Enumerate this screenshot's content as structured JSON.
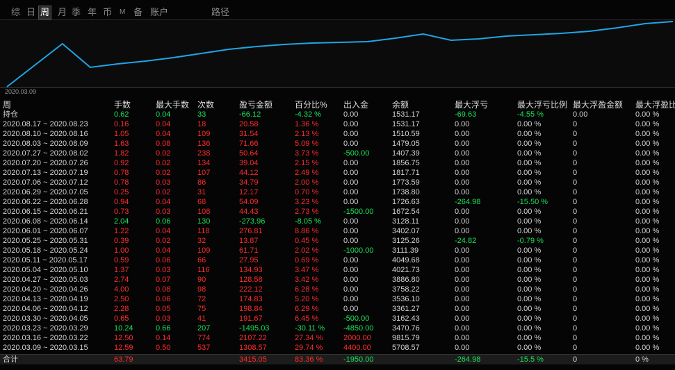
{
  "tabs": [
    "综",
    "日",
    "周",
    "月",
    "季",
    "年",
    "币",
    "M",
    "备",
    "账户",
    "路径"
  ],
  "selected_tab": "周",
  "chart_data": {
    "type": "line",
    "color": "#1ea6e6",
    "categories": [
      "2020.03.09",
      null,
      null,
      null,
      null,
      null,
      null,
      null,
      null,
      null,
      null,
      null,
      null,
      null,
      null,
      null,
      null,
      null,
      null,
      null,
      null,
      null,
      null,
      null,
      null
    ],
    "values": [
      0,
      31,
      62,
      28,
      33,
      37,
      42,
      48,
      54,
      58,
      61,
      63,
      64,
      65,
      70,
      76,
      67,
      69,
      73,
      75,
      77,
      80,
      85,
      91,
      94
    ]
  },
  "palette": {
    "w": "#d4d4d4",
    "r": "#ff2b2b",
    "g": "#19e35a"
  },
  "table": {
    "header": [
      "周",
      "手数",
      "最大手数",
      "次数",
      "盈亏金额",
      "百分比%",
      "出入金",
      "余额",
      "最大浮亏",
      "最大浮亏比例",
      "最大浮盈金额",
      "最大浮盈比"
    ],
    "rows": [
      {
        "cells": [
          "持仓",
          "0.62",
          "0.04",
          "33",
          "-66.12",
          "-4.32 %",
          "0.00",
          "1531.17",
          "-69.63",
          "-4.55 %",
          "0.00",
          "0.00 %"
        ],
        "colors": "wgggggwwggww"
      },
      {
        "cells": [
          "2020.08.17 ~ 2020.08.23",
          "0.16",
          "0.04",
          "18",
          "20.58",
          "1.36 %",
          "0.00",
          "1531.17",
          "0.00",
          "0.00 %",
          "0",
          "0.00 %"
        ],
        "colors": "wrrrrrwwwwww"
      },
      {
        "cells": [
          "2020.08.10 ~ 2020.08.16",
          "1.05",
          "0.04",
          "109",
          "31.54",
          "2.13 %",
          "0.00",
          "1510.59",
          "0.00",
          "0.00 %",
          "0",
          "0.00 %"
        ],
        "colors": "wrrrrrwwwwww"
      },
      {
        "cells": [
          "2020.08.03 ~ 2020.08.09",
          "1.63",
          "0.08",
          "136",
          "71.66",
          "5.09 %",
          "0.00",
          "1479.05",
          "0.00",
          "0.00 %",
          "0",
          "0.00 %"
        ],
        "colors": "wrrrrrwwwwww"
      },
      {
        "cells": [
          "2020.07.27 ~ 2020.08.02",
          "1.82",
          "0.02",
          "238",
          "50.64",
          "3.73 %",
          "-500.00",
          "1407.39",
          "0.00",
          "0.00 %",
          "0",
          "0.00 %"
        ],
        "colors": "wrrrrrgwwwww"
      },
      {
        "cells": [
          "2020.07.20 ~ 2020.07.26",
          "0.92",
          "0.02",
          "134",
          "39.04",
          "2.15 %",
          "0.00",
          "1856.75",
          "0.00",
          "0.00 %",
          "0",
          "0.00 %"
        ],
        "colors": "wrrrrrwwwwww"
      },
      {
        "cells": [
          "2020.07.13 ~ 2020.07.19",
          "0.78",
          "0.02",
          "107",
          "44.12",
          "2.49 %",
          "0.00",
          "1817.71",
          "0.00",
          "0.00 %",
          "0",
          "0.00 %"
        ],
        "colors": "wrrrrrwwwwww"
      },
      {
        "cells": [
          "2020.07.06 ~ 2020.07.12",
          "0.78",
          "0.03",
          "86",
          "34.79",
          "2.00 %",
          "0.00",
          "1773.59",
          "0.00",
          "0.00 %",
          "0",
          "0.00 %"
        ],
        "colors": "wrrrrrwwwwww"
      },
      {
        "cells": [
          "2020.06.29 ~ 2020.07.05",
          "0.25",
          "0.02",
          "31",
          "12.17",
          "0.70 %",
          "0.00",
          "1738.80",
          "0.00",
          "0.00 %",
          "0",
          "0.00 %"
        ],
        "colors": "wrrrrrwwwwww"
      },
      {
        "cells": [
          "2020.06.22 ~ 2020.06.28",
          "0.94",
          "0.04",
          "68",
          "54.09",
          "3.23 %",
          "0.00",
          "1726.63",
          "-264.98",
          "-15.50 %",
          "0",
          "0.00 %"
        ],
        "colors": "wrrrrrwwggww"
      },
      {
        "cells": [
          "2020.06.15 ~ 2020.06.21",
          "0.73",
          "0.03",
          "108",
          "44.43",
          "2.73 %",
          "-1500.00",
          "1672.54",
          "0.00",
          "0.00 %",
          "0",
          "0.00 %"
        ],
        "colors": "wrrrrrgwwwww"
      },
      {
        "cells": [
          "2020.06.08 ~ 2020.06.14",
          "2.04",
          "0.06",
          "130",
          "-273.96",
          "-8.05 %",
          "0.00",
          "3128.11",
          "0.00",
          "0.00 %",
          "0",
          "0.00 %"
        ],
        "colors": "wgggggwwwwww"
      },
      {
        "cells": [
          "2020.06.01 ~ 2020.06.07",
          "1.22",
          "0.04",
          "118",
          "276.81",
          "8.86 %",
          "0.00",
          "3402.07",
          "0.00",
          "0.00 %",
          "0",
          "0.00 %"
        ],
        "colors": "wrrrrrwwwwww"
      },
      {
        "cells": [
          "2020.05.25 ~ 2020.05.31",
          "0.39",
          "0.02",
          "32",
          "13.87",
          "0.45 %",
          "0.00",
          "3125.26",
          "-24.82",
          "-0.79 %",
          "0",
          "0.00 %"
        ],
        "colors": "wrrrrrwwggww"
      },
      {
        "cells": [
          "2020.05.18 ~ 2020.05.24",
          "1.00",
          "0.04",
          "109",
          "61.71",
          "2.02 %",
          "-1000.00",
          "3111.39",
          "0.00",
          "0.00 %",
          "0",
          "0.00 %"
        ],
        "colors": "wrrrrrgwwwww"
      },
      {
        "cells": [
          "2020.05.11 ~ 2020.05.17",
          "0.59",
          "0.06",
          "66",
          "27.95",
          "0.69 %",
          "0.00",
          "4049.68",
          "0.00",
          "0.00 %",
          "0",
          "0.00 %"
        ],
        "colors": "wrrrrrwwwwww"
      },
      {
        "cells": [
          "2020.05.04 ~ 2020.05.10",
          "1.37",
          "0.03",
          "116",
          "134.93",
          "3.47 %",
          "0.00",
          "4021.73",
          "0.00",
          "0.00 %",
          "0",
          "0.00 %"
        ],
        "colors": "wrrrrrwwwwww"
      },
      {
        "cells": [
          "2020.04.27 ~ 2020.05.03",
          "2.74",
          "0.07",
          "90",
          "128.58",
          "3.42 %",
          "0.00",
          "3886.80",
          "0.00",
          "0.00 %",
          "0",
          "0.00 %"
        ],
        "colors": "wrrrrrwwwwww"
      },
      {
        "cells": [
          "2020.04.20 ~ 2020.04.26",
          "4.00",
          "0.08",
          "98",
          "222.12",
          "6.28 %",
          "0.00",
          "3758.22",
          "0.00",
          "0.00 %",
          "0",
          "0.00 %"
        ],
        "colors": "wrrrrrwwwwww"
      },
      {
        "cells": [
          "2020.04.13 ~ 2020.04.19",
          "2.50",
          "0.06",
          "72",
          "174.83",
          "5.20 %",
          "0.00",
          "3536.10",
          "0.00",
          "0.00 %",
          "0",
          "0.00 %"
        ],
        "colors": "wrrrrrwwwwww"
      },
      {
        "cells": [
          "2020.04.06 ~ 2020.04.12",
          "2.28",
          "0.05",
          "75",
          "198.84",
          "6.29 %",
          "0.00",
          "3361.27",
          "0.00",
          "0.00 %",
          "0",
          "0.00 %"
        ],
        "colors": "wrrrrrwwwwww"
      },
      {
        "cells": [
          "2020.03.30 ~ 2020.04.05",
          "0.65",
          "0.03",
          "41",
          "191.67",
          "6.45 %",
          "-500.00",
          "3162.43",
          "0.00",
          "0.00 %",
          "0",
          "0.00 %"
        ],
        "colors": "wrrrrrgwwwww"
      },
      {
        "cells": [
          "2020.03.23 ~ 2020.03.29",
          "10.24",
          "0.66",
          "207",
          "-1495.03",
          "-30.11 %",
          "-4850.00",
          "3470.76",
          "0.00",
          "0.00 %",
          "0",
          "0.00 %"
        ],
        "colors": "wggggggwwwww"
      },
      {
        "cells": [
          "2020.03.16 ~ 2020.03.22",
          "12.50",
          "0.14",
          "774",
          "2107.22",
          "27.34 %",
          "2000.00",
          "9815.79",
          "0.00",
          "0.00 %",
          "0",
          "0.00 %"
        ],
        "colors": "wrrrrrrwwwww"
      },
      {
        "cells": [
          "2020.03.09 ~ 2020.03.15",
          "12.59",
          "0.50",
          "537",
          "1308.57",
          "29.74 %",
          "4400.00",
          "5708.57",
          "0.00",
          "0.00 %",
          "0",
          "0.00 %"
        ],
        "colors": "wrrrrrrwwwww"
      }
    ],
    "total": {
      "cells": [
        "合计",
        "63.79",
        null,
        null,
        "3415.05",
        "83.36 %",
        "-1950.00",
        null,
        "-264.98",
        "-15.5 %",
        "0",
        "0 %"
      ],
      "colors": "wrwwrrgwggww"
    }
  }
}
